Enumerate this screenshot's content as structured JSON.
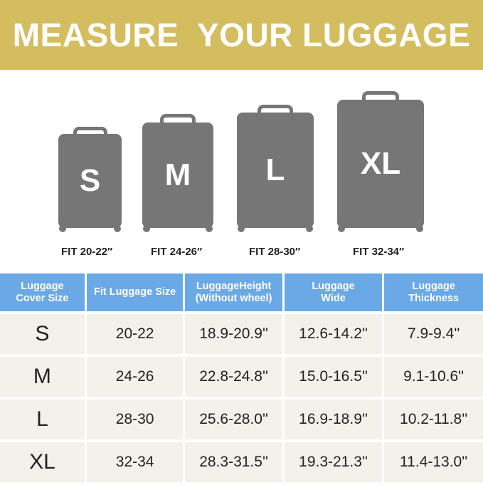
{
  "title": "MEASURE  YOUR LUGGAGE",
  "colors": {
    "banner": "#d4bd5f",
    "header": "#6aa8e6",
    "suitcase": "#767676",
    "row": "#f4f0ea"
  },
  "suitcases": [
    {
      "letter": "S",
      "fit": "FIT 20-22″"
    },
    {
      "letter": "M",
      "fit": "FIT 24-26″"
    },
    {
      "letter": "L",
      "fit": "FIT 28-30″"
    },
    {
      "letter": "XL",
      "fit": "FIT 32-34″"
    }
  ],
  "table": {
    "headers": [
      [
        "Luggage",
        "Cover Size"
      ],
      [
        "Fit Luggage Size",
        ""
      ],
      [
        "LuggageHeight",
        "(Without wheel)"
      ],
      [
        "Luggage",
        "Wide"
      ],
      [
        "Luggage",
        "Thickness"
      ]
    ],
    "rows": [
      [
        "S",
        "20-22",
        "18.9-20.9''",
        "12.6-14.2''",
        "7.9-9.4''"
      ],
      [
        "M",
        "24-26",
        "22.8-24.8''",
        "15.0-16.5''",
        "9.1-10.6''"
      ],
      [
        "L",
        "28-30",
        "25.6-28.0''",
        "16.9-18.9''",
        "10.2-11.8''"
      ],
      [
        "XL",
        "32-34",
        "28.3-31.5''",
        "19.3-21.3''",
        "11.4-13.0''"
      ]
    ]
  }
}
